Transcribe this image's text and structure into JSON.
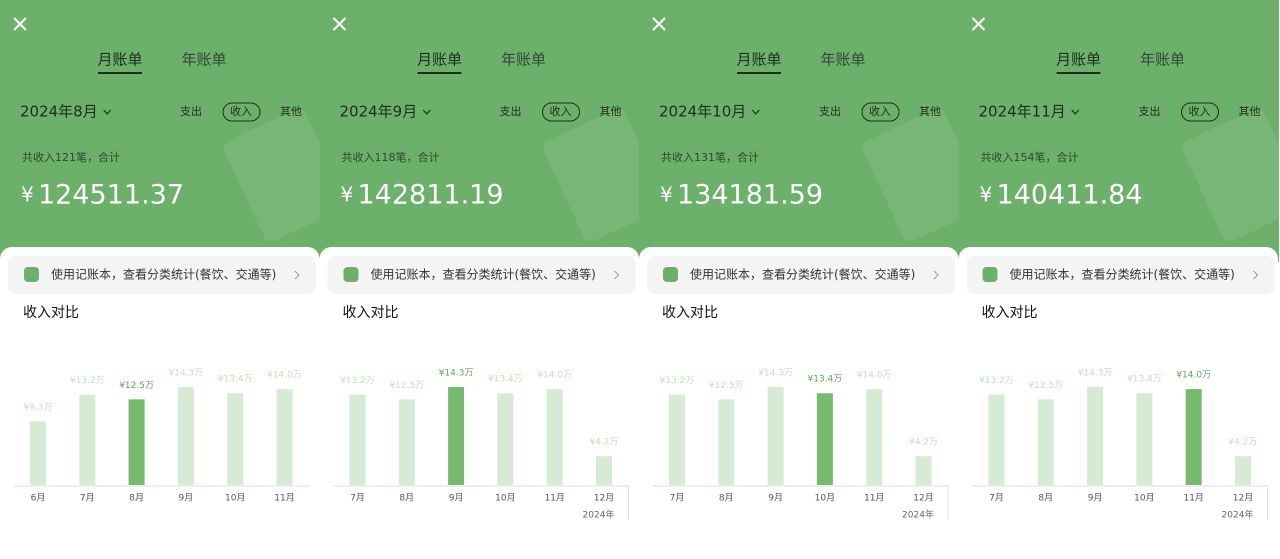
{
  "panels": [
    {
      "tabs": [
        "月账单",
        "年账单"
      ],
      "month": "2024年8月",
      "filters": [
        "支出",
        "收入",
        "其他"
      ],
      "summary": "共收入121笔，合计",
      "currency": "¥",
      "amount": "124511.37",
      "banner": "使用记账本，查看分类统计(餐饮、交通等)",
      "section_title": "收入对比"
    },
    {
      "tabs": [
        "月账单",
        "年账单"
      ],
      "month": "2024年9月",
      "filters": [
        "支出",
        "收入",
        "其他"
      ],
      "summary": "共收入118笔，合计",
      "currency": "¥",
      "amount": "142811.19",
      "banner": "使用记账本，查看分类统计(餐饮、交通等)",
      "section_title": "收入对比"
    },
    {
      "tabs": [
        "月账单",
        "年账单"
      ],
      "month": "2024年10月",
      "filters": [
        "支出",
        "收入",
        "其他"
      ],
      "summary": "共收入131笔，合计",
      "currency": "¥",
      "amount": "134181.59",
      "banner": "使用记账本，查看分类统计(餐饮、交通等)",
      "section_title": "收入对比"
    },
    {
      "tabs": [
        "月账单",
        "年账单"
      ],
      "month": "2024年11月",
      "filters": [
        "支出",
        "收入",
        "其他"
      ],
      "summary": "共收入154笔，合计",
      "currency": "¥",
      "amount": "140411.84",
      "banner": "使用记账本，查看分类统计(餐饮、交通等)",
      "section_title": "收入对比"
    }
  ],
  "chart_data": [
    {
      "type": "bar",
      "categories": [
        "6月",
        "7月",
        "8月",
        "9月",
        "10月",
        "11月"
      ],
      "values": [
        9.3,
        13.2,
        12.5,
        14.3,
        13.4,
        14
      ],
      "value_labels": [
        "¥9.3万",
        "¥13.2万",
        "¥12.5万",
        "¥14.3万",
        "¥13.4万",
        "¥14.0万"
      ],
      "color": "#d6ebd3",
      "highlight_color": "#78b970",
      "highlight_index": 2
    },
    {
      "type": "bar",
      "categories": [
        "7月",
        "8月",
        "9月",
        "10月",
        "11月",
        "12月"
      ],
      "values": [
        13.2,
        12.5,
        14.3,
        13.4,
        14,
        4.2
      ],
      "value_labels": [
        "¥13.2万",
        "¥12.5万",
        "¥14.3万",
        "¥13.4万",
        "¥14.0万",
        "¥4.2万"
      ],
      "x_note": "2024年",
      "color": "#d6ebd3",
      "highlight_color": "#78b970",
      "highlight_index": 2
    },
    {
      "type": "bar",
      "categories": [
        "7月",
        "8月",
        "9月",
        "10月",
        "11月",
        "12月"
      ],
      "values": [
        13.2,
        12.5,
        14.3,
        13.4,
        14,
        4.2
      ],
      "value_labels": [
        "¥13.2万",
        "¥12.5万",
        "¥14.3万",
        "¥13.4万",
        "¥14.0万",
        "¥4.2万"
      ],
      "x_note": "2024年",
      "color": "#d6ebd3",
      "highlight_color": "#78b970",
      "highlight_index": 3
    },
    {
      "type": "bar",
      "categories": [
        "7月",
        "8月",
        "9月",
        "10月",
        "11月",
        "12月"
      ],
      "values": [
        13.2,
        12.5,
        14.3,
        13.4,
        14,
        4.2
      ],
      "value_labels": [
        "¥13.2万",
        "¥12.5万",
        "¥14.3万",
        "¥13.4万",
        "¥14.0万",
        "¥4.2万"
      ],
      "x_note": "2024年",
      "color": "#d6ebd3",
      "highlight_color": "#78b970",
      "highlight_index": 4
    }
  ]
}
